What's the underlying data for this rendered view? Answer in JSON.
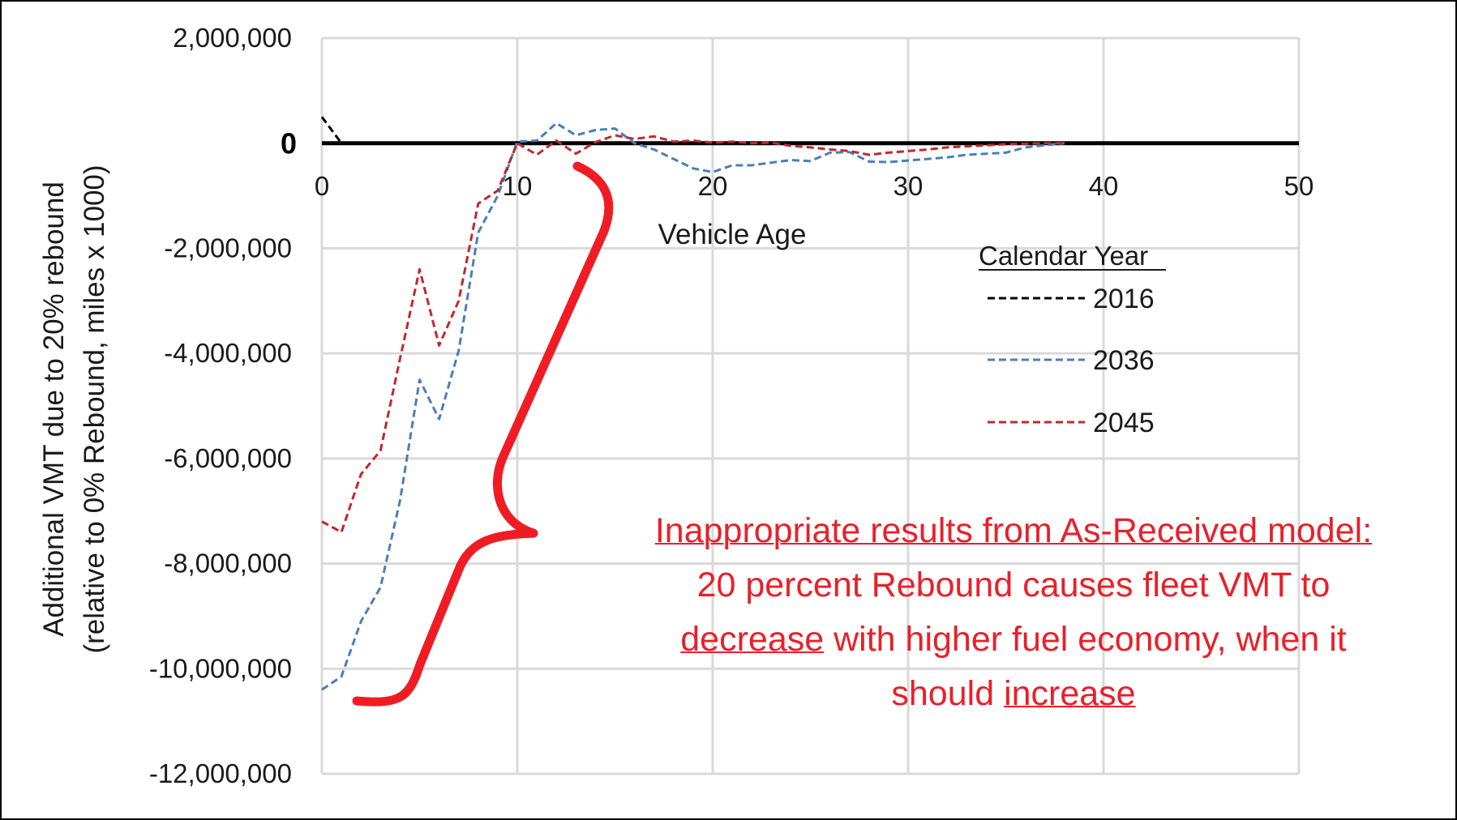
{
  "chart_data": {
    "type": "line",
    "title": "",
    "xlabel": "Vehicle Age",
    "ylabel": "Additional VMT due to 20% rebound",
    "ylabel2": "(relative to 0% Rebound, miles x 1000)",
    "xlim": [
      0,
      50
    ],
    "ylim": [
      -12000000,
      2000000
    ],
    "x_ticks": [
      "0",
      "10",
      "20",
      "30",
      "40",
      "50"
    ],
    "y_ticks": [
      "2,000,000",
      "0",
      "-2,000,000",
      "-4,000,000",
      "-6,000,000",
      "-8,000,000",
      "-10,000,000",
      "-12,000,000"
    ],
    "zero_line_label": "0",
    "grid": true,
    "legend": {
      "title": "Calendar Year",
      "position": "right"
    },
    "series": [
      {
        "name": "2016",
        "color": "#000000",
        "x": [
          0,
          1
        ],
        "values": [
          500000,
          0
        ]
      },
      {
        "name": "2036",
        "color": "#4a7ebb",
        "x": [
          0,
          1,
          2,
          3,
          4,
          5,
          6,
          7,
          8,
          9,
          10,
          11,
          12,
          13,
          14,
          15,
          16,
          17,
          18,
          19,
          20,
          21,
          22,
          23,
          24,
          25,
          26,
          27,
          28,
          29,
          30,
          31,
          32,
          33,
          34,
          35,
          36,
          37,
          38
        ],
        "values": [
          -10400000,
          -10150000,
          -9100000,
          -8450000,
          -6800000,
          -4500000,
          -5250000,
          -3950000,
          -1700000,
          -1000000,
          30000,
          50000,
          380000,
          150000,
          250000,
          280000,
          0,
          -120000,
          -300000,
          -480000,
          -550000,
          -420000,
          -420000,
          -370000,
          -320000,
          -340000,
          -180000,
          -170000,
          -350000,
          -360000,
          -330000,
          -300000,
          -270000,
          -220000,
          -200000,
          -180000,
          -80000,
          -40000,
          0
        ]
      },
      {
        "name": "2045",
        "color": "#c0282d",
        "x": [
          0,
          1,
          2,
          3,
          4,
          5,
          6,
          7,
          8,
          9,
          10,
          11,
          12,
          13,
          14,
          15,
          16,
          17,
          18,
          19,
          20,
          21,
          22,
          23,
          24,
          25,
          26,
          27,
          28,
          29,
          30,
          31,
          32,
          33,
          34,
          35,
          36,
          37,
          38
        ],
        "values": [
          -7200000,
          -7400000,
          -6300000,
          -5850000,
          -4100000,
          -2400000,
          -3850000,
          -3000000,
          -1150000,
          -900000,
          0,
          -220000,
          50000,
          -200000,
          20000,
          150000,
          80000,
          130000,
          30000,
          50000,
          10000,
          30000,
          0,
          10000,
          -50000,
          -80000,
          -120000,
          -150000,
          -220000,
          -180000,
          -150000,
          -120000,
          -80000,
          -60000,
          -40000,
          -20000,
          -10000,
          0,
          0
        ]
      }
    ],
    "annotation": {
      "heading": "Inappropriate results from As-Received model:",
      "line1": "20 percent Rebound causes fleet VMT to",
      "line2_underlined": "decrease",
      "line2_rest": " with higher fuel economy, when it",
      "line3_prefix": "should ",
      "line3_underlined": "increase",
      "color": "#e8202a"
    }
  }
}
